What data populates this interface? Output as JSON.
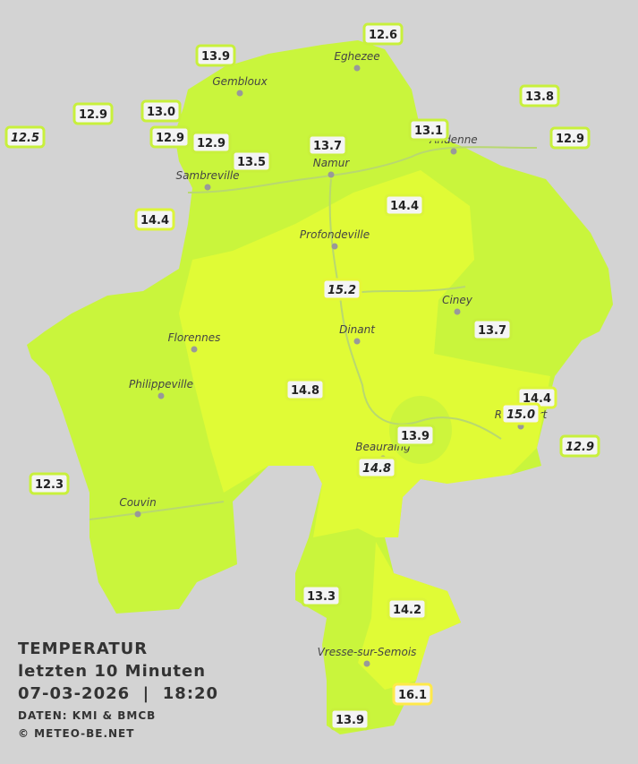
{
  "title": {
    "line1": "TEMPERATUR",
    "line2": "letzten 10 Minuten",
    "line3": "07-03-2026  |  18:20",
    "source": "DATEN: KMI & BMCB",
    "copyright": "© METEO-BE.NET"
  },
  "towns": [
    "Eghezee",
    "Gembloux",
    "Andenne",
    "Sambreville",
    "Namur",
    "Profondeville",
    "Ciney",
    "Florennes",
    "Dinant",
    "Philippeville",
    "Rochefort",
    "Beauraing",
    "Couvin",
    "Vresse-sur-Semois"
  ],
  "stations": [
    {
      "label": "12.6",
      "italic": false,
      "color": "#c8f03c"
    },
    {
      "label": "13.9",
      "italic": false,
      "color": "#c8f03c"
    },
    {
      "label": "13.8",
      "italic": false,
      "color": "#c8f03c"
    },
    {
      "label": "12.9",
      "italic": false,
      "color": "#c8f03c"
    },
    {
      "label": "13.0",
      "italic": false,
      "color": "#c8f03c"
    },
    {
      "label": "12.5",
      "italic": true,
      "color": "#c8f03c"
    },
    {
      "label": "12.9",
      "italic": false,
      "color": "#c8f03c"
    },
    {
      "label": "12.9",
      "italic": false,
      "color": "#c8f03c"
    },
    {
      "label": "13.1",
      "italic": false,
      "color": "#c8f03c"
    },
    {
      "label": "12.9",
      "italic": false,
      "color": "#c8f03c"
    },
    {
      "label": "13.7",
      "italic": false,
      "color": "#c8f03c"
    },
    {
      "label": "13.5",
      "italic": false,
      "color": "#c8f03c"
    },
    {
      "label": "14.4",
      "italic": false,
      "color": "#dcf53a"
    },
    {
      "label": "14.4",
      "italic": false,
      "color": "#dcf53a"
    },
    {
      "label": "15.2",
      "italic": true,
      "color": "#e4f736"
    },
    {
      "label": "13.7",
      "italic": false,
      "color": "#c8f03c"
    },
    {
      "label": "14.8",
      "italic": false,
      "color": "#dcf53a"
    },
    {
      "label": "14.4",
      "italic": false,
      "color": "#dcf53a"
    },
    {
      "label": "15.0",
      "italic": true,
      "color": "#e4f736"
    },
    {
      "label": "13.9",
      "italic": false,
      "color": "#c8f03c"
    },
    {
      "label": "12.9",
      "italic": true,
      "color": "#c8f03c"
    },
    {
      "label": "14.8",
      "italic": true,
      "color": "#dcf53a"
    },
    {
      "label": "12.3",
      "italic": false,
      "color": "#c8f03c"
    },
    {
      "label": "13.3",
      "italic": false,
      "color": "#c8f03c"
    },
    {
      "label": "14.2",
      "italic": false,
      "color": "#dcf53a"
    },
    {
      "label": "16.1",
      "italic": false,
      "color": "#ffe94a"
    },
    {
      "label": "13.9",
      "italic": false,
      "color": "#c8f03c"
    }
  ]
}
